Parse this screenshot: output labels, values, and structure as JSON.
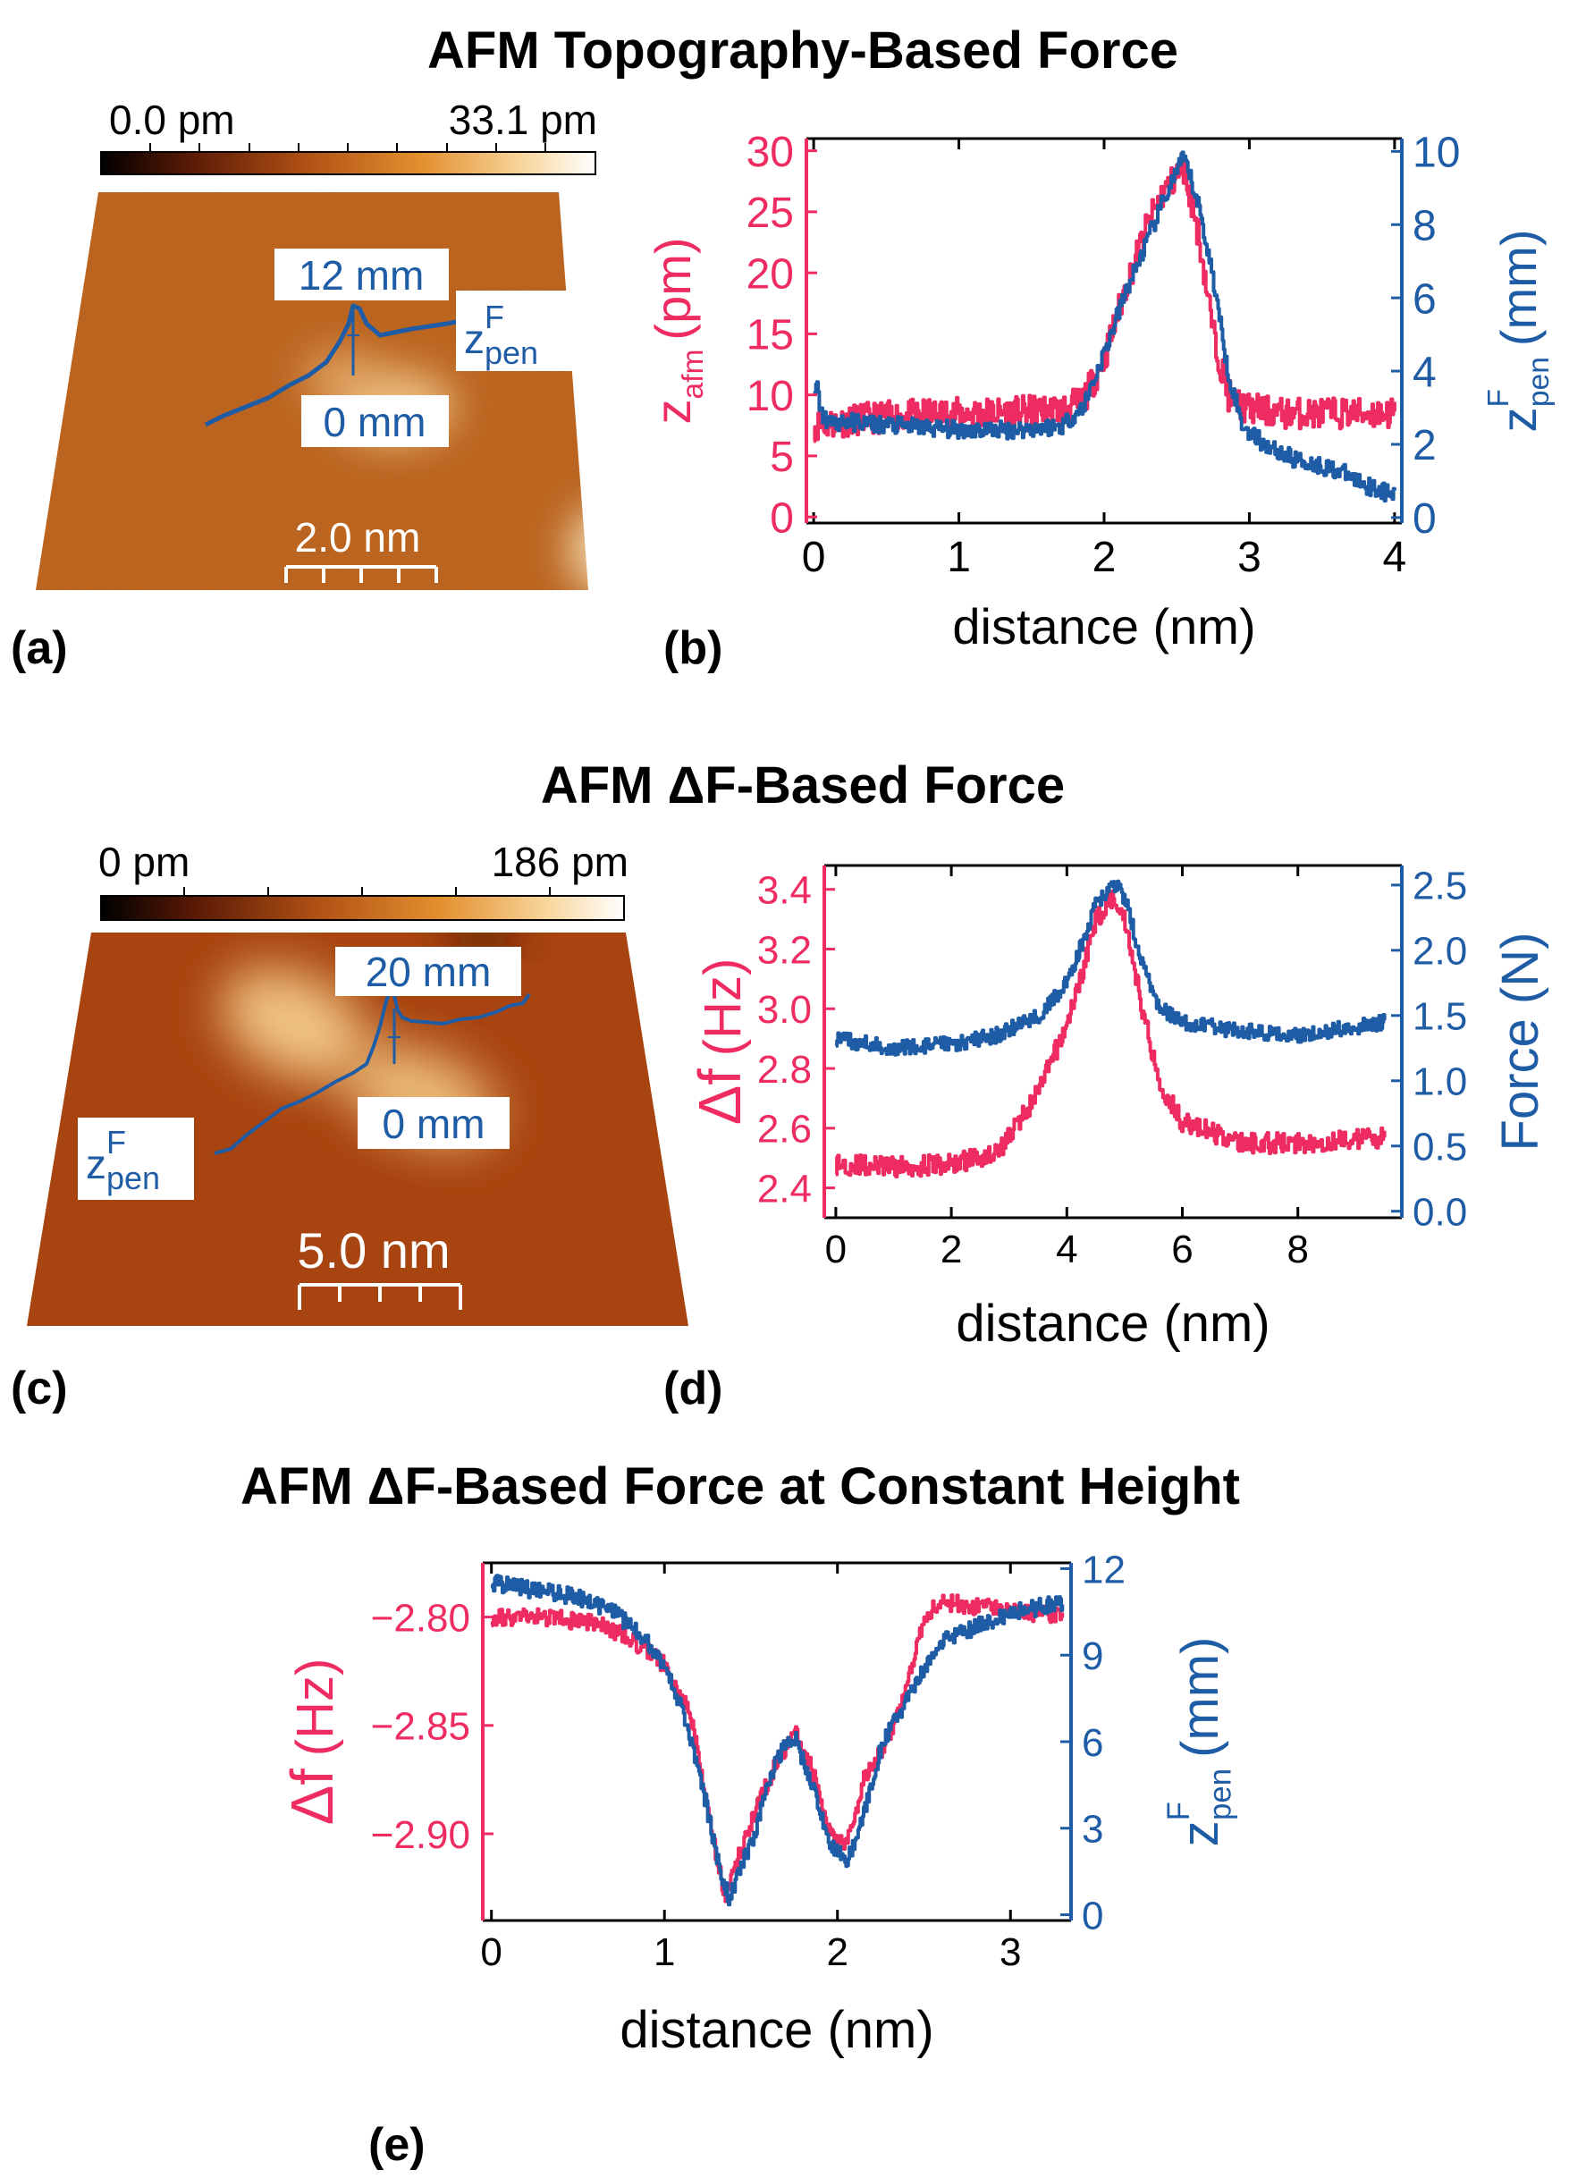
{
  "section_titles": {
    "top": "AFM Topography-Based Force",
    "middle": "AFM ΔF-Based Force",
    "bottom": "AFM ΔF-Based Force at Constant Height"
  },
  "panel_labels": {
    "a": "(a)",
    "b": "(b)",
    "c": "(c)",
    "d": "(d)",
    "e": "(e)"
  },
  "colors": {
    "pink": "#ee2c62",
    "blue": "#1f5ca6",
    "afm_dark": "#9a3a0e",
    "afm_mid": "#c4661e",
    "afm_light": "#f0c88a"
  },
  "image_a": {
    "colorbar_min": "0.0 pm",
    "colorbar_max": "33.1 pm",
    "label_top": "12 mm",
    "label_bottom": "0 mm",
    "zpen_base": "z",
    "zpen_sup": "F",
    "zpen_sub": "pen",
    "scalebar": "2.0 nm"
  },
  "image_c": {
    "colorbar_min": "0 pm",
    "colorbar_max": "186 pm",
    "label_top": "20 mm",
    "label_bottom": "0 mm",
    "zpen_base": "z",
    "zpen_sup": "F",
    "zpen_sub": "pen",
    "scalebar": "5.0 nm"
  },
  "chart_data": [
    {
      "id": "b",
      "type": "line",
      "xlabel": "distance (nm)",
      "ylabel_left": "z_afm (pm)",
      "ylabel_left_base": "z",
      "ylabel_left_sub": "afm",
      "ylabel_left_unit": "(pm)",
      "ylabel_right": "z_pen^F (mm)",
      "ylabel_right_base": "z",
      "ylabel_right_sup": "F",
      "ylabel_right_sub": "pen",
      "ylabel_right_unit": "(mm)",
      "xlim": [
        -0.05,
        4.05
      ],
      "xticks": [
        0,
        1,
        2,
        3,
        4
      ],
      "xtick_labels": [
        "0",
        "1",
        "2",
        "3",
        "4"
      ],
      "ylim_left": [
        -0.5,
        31
      ],
      "yticks_left": [
        0,
        5,
        10,
        15,
        20,
        25,
        30
      ],
      "ytick_labels_left": [
        "0",
        "5",
        "10",
        "15",
        "20",
        "25",
        "30"
      ],
      "ylim_right": [
        -0.15,
        10.35
      ],
      "yticks_right": [
        0,
        2,
        4,
        6,
        8,
        10
      ],
      "ytick_labels_right": [
        "0",
        "2",
        "4",
        "6",
        "8",
        "10"
      ],
      "series": [
        {
          "name": "z_afm",
          "axis": "left",
          "color": "pink",
          "noise": 1.3,
          "x": [
            0,
            0.3,
            0.6,
            1.0,
            1.4,
            1.7,
            1.85,
            2.0,
            2.15,
            2.3,
            2.4,
            2.5,
            2.55,
            2.65,
            2.75,
            2.85,
            2.95,
            3.2,
            3.6,
            4.0
          ],
          "y": [
            7.5,
            8.0,
            8.3,
            8.5,
            8.6,
            8.8,
            9.5,
            13.0,
            19.0,
            24.0,
            26.5,
            28.0,
            28.5,
            23.0,
            15.0,
            10.0,
            9.0,
            8.5,
            8.5,
            8.5
          ]
        },
        {
          "name": "z_pen",
          "axis": "right",
          "color": "blue",
          "noise": 0.25,
          "x": [
            0,
            0.02,
            0.05,
            0.1,
            0.3,
            0.6,
            1.0,
            1.4,
            1.7,
            1.85,
            2.0,
            2.15,
            2.3,
            2.4,
            2.5,
            2.55,
            2.65,
            2.75,
            2.85,
            2.95,
            3.1,
            3.3,
            3.6,
            3.8,
            4.0
          ],
          "y": [
            3.3,
            3.6,
            2.8,
            2.6,
            2.6,
            2.5,
            2.4,
            2.4,
            2.5,
            3.0,
            4.5,
            6.2,
            7.6,
            8.6,
            9.5,
            9.8,
            8.5,
            6.5,
            4.0,
            2.5,
            2.0,
            1.6,
            1.3,
            0.9,
            0.6
          ]
        }
      ]
    },
    {
      "id": "d",
      "type": "line",
      "xlabel": "distance (nm)",
      "ylabel_left": "Δf (Hz)",
      "ylabel_left_base": "Δf",
      "ylabel_left_unit": "(Hz)",
      "ylabel_right": "Force (N)",
      "xlim": [
        -0.2,
        9.8
      ],
      "xticks": [
        0,
        2,
        4,
        6,
        8
      ],
      "xtick_labels": [
        "0",
        "2",
        "4",
        "6",
        "8"
      ],
      "ylim_left": [
        2.3,
        3.48
      ],
      "yticks_left": [
        2.4,
        2.6,
        2.8,
        3.0,
        3.2,
        3.4
      ],
      "ytick_labels_left": [
        "2.4",
        "2.6",
        "2.8",
        "3.0",
        "3.2",
        "3.4"
      ],
      "ylim_right": [
        -0.05,
        2.65
      ],
      "yticks_right": [
        0.0,
        0.5,
        1.0,
        1.5,
        2.0,
        2.5
      ],
      "ytick_labels_right": [
        "0.0",
        "0.5",
        "1.0",
        "1.5",
        "2.0",
        "2.5"
      ],
      "series": [
        {
          "name": "Δf",
          "axis": "left",
          "color": "pink",
          "noise": 0.035,
          "x": [
            0,
            1,
            2,
            2.8,
            3.5,
            4.0,
            4.3,
            4.5,
            4.8,
            5.0,
            5.3,
            5.6,
            6.0,
            7,
            8,
            9.5
          ],
          "y": [
            2.48,
            2.47,
            2.48,
            2.52,
            2.72,
            2.95,
            3.15,
            3.3,
            3.38,
            3.3,
            3.0,
            2.75,
            2.62,
            2.55,
            2.55,
            2.57
          ]
        },
        {
          "name": "Force",
          "axis": "right",
          "color": "blue",
          "noise": 0.06,
          "x": [
            0,
            1,
            2,
            2.8,
            3.5,
            4.0,
            4.3,
            4.5,
            4.8,
            5.0,
            5.3,
            5.6,
            6.0,
            7,
            8,
            9.5
          ],
          "y": [
            1.32,
            1.25,
            1.28,
            1.35,
            1.5,
            1.75,
            2.1,
            2.35,
            2.52,
            2.4,
            1.9,
            1.55,
            1.45,
            1.38,
            1.35,
            1.45
          ]
        }
      ]
    },
    {
      "id": "e",
      "type": "line",
      "xlabel": "distance (nm)",
      "ylabel_left": "Δf (Hz)",
      "ylabel_left_base": "Δf",
      "ylabel_left_unit": "(Hz)",
      "ylabel_right": "z_pen^F (mm)",
      "ylabel_right_base": "z",
      "ylabel_right_sup": "F",
      "ylabel_right_sub": "pen",
      "ylabel_right_unit": "(mm)",
      "xlim": [
        -0.05,
        3.35
      ],
      "xticks": [
        0,
        1,
        2,
        3
      ],
      "xtick_labels": [
        "0",
        "1",
        "2",
        "3"
      ],
      "ylim_left": [
        -2.94,
        -2.775
      ],
      "yticks_left": [
        -2.8,
        -2.85,
        -2.9
      ],
      "ytick_labels_left": [
        "−2.80",
        "−2.85",
        "−2.90"
      ],
      "ylim_right": [
        -0.2,
        12.2
      ],
      "yticks_right": [
        0,
        3,
        6,
        9,
        12
      ],
      "ytick_labels_right": [
        "0",
        "3",
        "6",
        "9",
        "12"
      ],
      "series": [
        {
          "name": "Δf",
          "axis": "left",
          "color": "pink",
          "noise": 0.004,
          "x": [
            0,
            0.3,
            0.6,
            0.8,
            1.0,
            1.15,
            1.25,
            1.35,
            1.45,
            1.6,
            1.75,
            1.85,
            1.95,
            2.05,
            2.15,
            2.3,
            2.4,
            2.5,
            2.6,
            2.8,
            3.0,
            3.3
          ],
          "y": [
            -2.8,
            -2.8,
            -2.803,
            -2.81,
            -2.822,
            -2.845,
            -2.89,
            -2.93,
            -2.905,
            -2.875,
            -2.852,
            -2.87,
            -2.9,
            -2.905,
            -2.875,
            -2.855,
            -2.83,
            -2.8,
            -2.793,
            -2.795,
            -2.797,
            -2.8
          ]
        },
        {
          "name": "z_pen",
          "axis": "right",
          "color": "blue",
          "noise": 0.3,
          "x": [
            0,
            0.3,
            0.5,
            0.7,
            0.9,
            1.05,
            1.2,
            1.3,
            1.37,
            1.5,
            1.65,
            1.75,
            1.85,
            1.95,
            2.05,
            2.15,
            2.25,
            2.4,
            2.5,
            2.6,
            2.8,
            3.0,
            3.3
          ],
          "y": [
            11.5,
            11.2,
            11.0,
            10.5,
            9.5,
            8.0,
            5.0,
            2.0,
            0.6,
            2.5,
            5.5,
            6.2,
            4.5,
            2.5,
            1.8,
            3.5,
            5.8,
            7.5,
            8.5,
            9.5,
            10.0,
            10.5,
            10.8
          ]
        }
      ]
    }
  ]
}
